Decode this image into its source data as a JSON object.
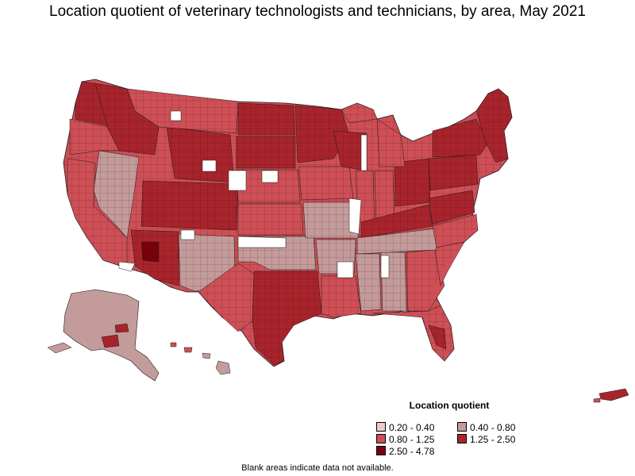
{
  "title": "Location quotient of veterinary technologists and technicians, by area, May 2021",
  "legend": {
    "title": "Location quotient",
    "items": [
      {
        "label": "0.20 - 0.40",
        "color": "#f3c9cc"
      },
      {
        "label": "0.40 - 0.80",
        "color": "#c49b9b"
      },
      {
        "label": "0.80 - 1.25",
        "color": "#cf4f56"
      },
      {
        "label": "1.25 - 2.50",
        "color": "#a8242c"
      },
      {
        "label": "2.50 - 4.78",
        "color": "#7a000c"
      }
    ]
  },
  "footnote": "Blank areas indicate data not available.",
  "colors": {
    "border": "#1a1a1a",
    "no_data": "#ffffff"
  }
}
